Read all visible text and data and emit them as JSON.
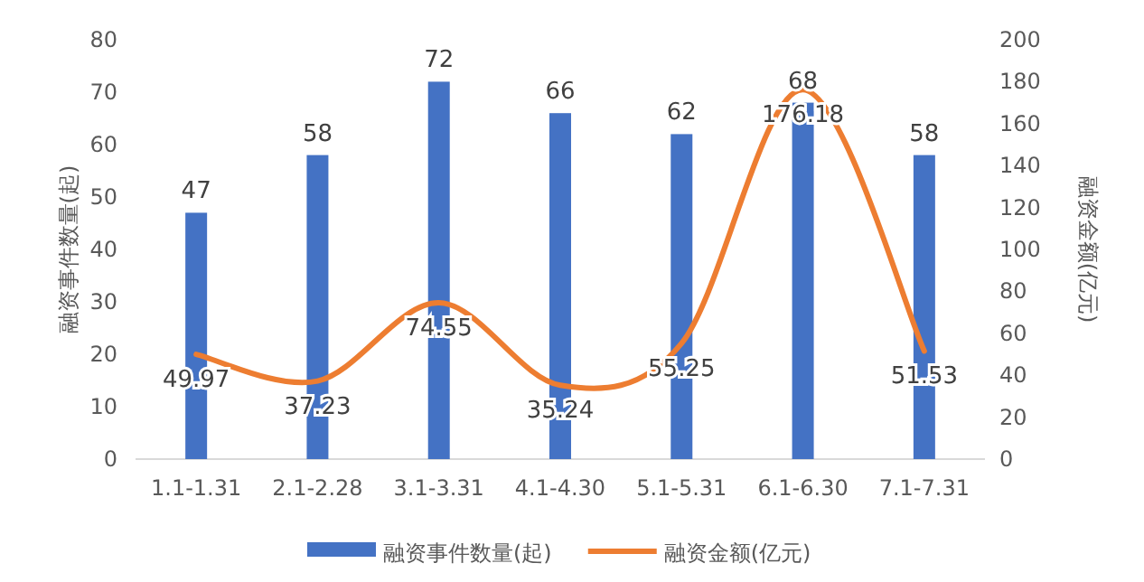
{
  "chart_data": {
    "type": "bar",
    "ylabel": "融资事件数量(起)",
    "y2label": "融资金额(亿元)",
    "categories": [
      "1.1-1.31",
      "2.1-2.28",
      "3.1-3.31",
      "4.1-4.30",
      "5.1-5.31",
      "6.1-6.30",
      "7.1-7.31"
    ],
    "ylim": [
      0,
      80
    ],
    "yticks": [
      0,
      10,
      20,
      30,
      40,
      50,
      60,
      70,
      80
    ],
    "y2lim": [
      0,
      200
    ],
    "y2ticks": [
      0,
      20,
      40,
      60,
      80,
      100,
      120,
      140,
      160,
      180,
      200
    ],
    "series": [
      {
        "name": "融资事件数量(起)",
        "color": "#4472c4",
        "values": [
          47,
          58,
          72,
          66,
          62,
          68,
          58
        ]
      },
      {
        "name": "融资金额(亿元)",
        "type": "line",
        "axis": "y2",
        "color": "#ed7d31",
        "values": [
          49.97,
          37.23,
          74.55,
          35.24,
          55.25,
          176.18,
          51.53
        ]
      }
    ],
    "data_labels": true,
    "legend": "bottom",
    "grid": false,
    "marker": "none"
  }
}
